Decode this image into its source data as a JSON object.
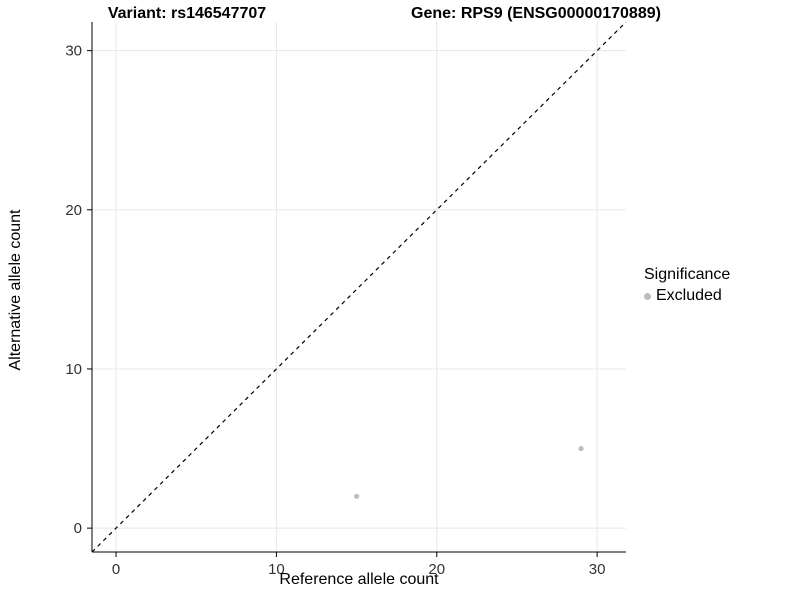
{
  "titles": {
    "variant": "Variant: rs146547707",
    "gene": "Gene: RPS9 (ENSG00000170889)"
  },
  "axes": {
    "x_label": "Reference allele count",
    "y_label": "Alternative allele count"
  },
  "legend": {
    "title": "Significance",
    "items": [
      {
        "label": "Excluded",
        "color": "#bdbdbd"
      }
    ]
  },
  "chart_data": {
    "type": "scatter",
    "title": "Variant: rs146547707 — Gene: RPS9 (ENSG00000170889)",
    "xlabel": "Reference allele count",
    "ylabel": "Alternative allele count",
    "series": [
      {
        "name": "Excluded",
        "color": "#bdbdbd",
        "points": [
          [
            15,
            2
          ],
          [
            29,
            5
          ]
        ]
      }
    ],
    "x_ticks": [
      0,
      10,
      20,
      30
    ],
    "y_ticks": [
      0,
      10,
      20,
      30
    ],
    "xlim": [
      -1.5,
      31.8
    ],
    "ylim": [
      -1.5,
      31.8
    ],
    "identity_line": {
      "style": "dashed",
      "slope": 1,
      "intercept": 0,
      "color": "#000000"
    },
    "grid": true,
    "colors": {
      "grid": "#e8e8e8",
      "axis": "#000000",
      "tick_text": "#333333",
      "point": "#bdbdbd",
      "background": "#ffffff"
    },
    "legend_position": "right"
  }
}
